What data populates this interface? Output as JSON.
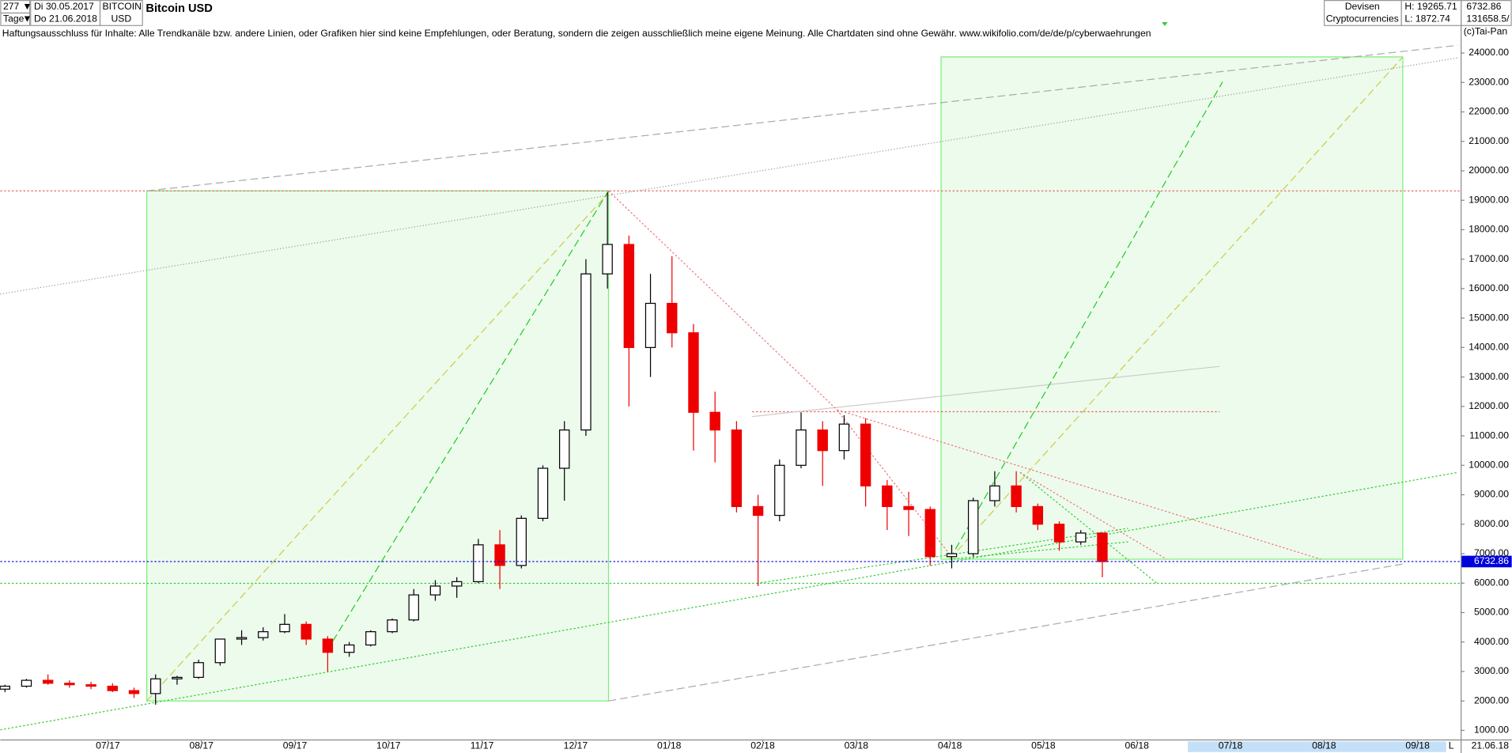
{
  "header": {
    "count": "277",
    "from_date": "Di 30.05.2017",
    "period": "Tage",
    "to_date": "Do 21.06.2018",
    "symbol": "BITCOIN",
    "currency": "USD",
    "group": "Devisen",
    "subgroup": "Cryptocurrencies",
    "high": "H: 19265.71",
    "low": "L: 1872.74",
    "last": "6732.86",
    "volume": "131658.5/"
  },
  "chart_data": {
    "type": "candlestick",
    "title": "Bitcoin USD",
    "subtitle": "Haftungsausschluss für Inhalte: Alle Trendkanäle bzw. andere Linien, oder Grafiken hier sind keine Empfehlungen, oder Beratung, sondern die zeigen ausschließlich meine eigene Meinung. Alle Chartdaten sind ohne Gewähr.  www.wikifolio.com/de/de/p/cyberwaehrungen",
    "copyright": "(c)Tai-Pan",
    "end_label": "21.06.18",
    "scale_label": "L",
    "up_color": "#000000",
    "down_color": "#ee0000",
    "last_price": 6732.86,
    "last_price_color": "#0000dd",
    "x": [
      5.9,
      6.13,
      6.36,
      6.59,
      6.82,
      7.05,
      7.28,
      7.51,
      7.74,
      7.97,
      8.2,
      8.43,
      8.66,
      8.89,
      9.12,
      9.35,
      9.58,
      9.81,
      10.04,
      10.27,
      10.5,
      10.73,
      10.96,
      11.19,
      11.42,
      11.65,
      11.88,
      12.11,
      12.34,
      12.57,
      12.8,
      13.03,
      13.26,
      13.49,
      13.72,
      13.95,
      14.18,
      14.41,
      14.64,
      14.87,
      15.1,
      15.33,
      15.56,
      15.79,
      16.02,
      16.25,
      16.48,
      16.71,
      16.94,
      17.17,
      17.4,
      17.63
    ],
    "open": [
      2400,
      2500,
      2700,
      2600,
      2550,
      2500,
      2350,
      2250,
      2750,
      2800,
      3300,
      4100,
      4150,
      4350,
      4600,
      4100,
      3650,
      3900,
      4350,
      4750,
      5600,
      5900,
      6050,
      7300,
      6600,
      8200,
      9900,
      11200,
      16500,
      17500,
      14000,
      15500,
      14500,
      11800,
      11200,
      8600,
      8300,
      10000,
      11200,
      10500,
      11400,
      9300,
      8600,
      8500,
      6900,
      7000,
      8800,
      9300,
      8600,
      8000,
      7400,
      7700
    ],
    "high": [
      2550,
      2750,
      2900,
      2700,
      2650,
      2600,
      2450,
      2900,
      2850,
      3400,
      4100,
      4400,
      4500,
      4950,
      4700,
      4200,
      4000,
      4400,
      4800,
      5800,
      6100,
      6200,
      7500,
      7800,
      8300,
      10000,
      11500,
      17000,
      19265.71,
      17800,
      16500,
      17100,
      14800,
      12500,
      11500,
      9000,
      10200,
      11800,
      11500,
      11700,
      11600,
      9500,
      9100,
      8600,
      7300,
      8900,
      9800,
      9800,
      8700,
      8100,
      7800,
      7700
    ],
    "low": [
      2300,
      2450,
      2550,
      2450,
      2400,
      2300,
      2100,
      1872.74,
      2550,
      2750,
      3200,
      3900,
      4050,
      4300,
      3900,
      3000,
      3500,
      3850,
      4300,
      4700,
      5400,
      5500,
      6000,
      5800,
      6500,
      8100,
      8800,
      11000,
      16000,
      12000,
      13000,
      14000,
      10500,
      10100,
      8400,
      5900,
      8100,
      9900,
      9300,
      10200,
      8600,
      7800,
      7600,
      6600,
      6500,
      6900,
      8600,
      8400,
      7800,
      7100,
      7300,
      6200
    ],
    "close": [
      2500,
      2700,
      2600,
      2550,
      2500,
      2350,
      2250,
      2750,
      2800,
      3300,
      4100,
      4150,
      4350,
      4600,
      4100,
      3650,
      3900,
      4350,
      4750,
      5600,
      5900,
      6050,
      7300,
      6600,
      8200,
      9900,
      11200,
      16500,
      17500,
      14000,
      15500,
      14500,
      11800,
      11200,
      8600,
      8300,
      10000,
      11200,
      10500,
      11400,
      9300,
      8600,
      8500,
      6900,
      7000,
      8800,
      9300,
      8600,
      8000,
      7400,
      7700,
      6732.86
    ],
    "xlim": [
      5.85,
      21.46
    ],
    "xticks": [
      {
        "value": 7,
        "label": "07/17"
      },
      {
        "value": 8,
        "label": "08/17"
      },
      {
        "value": 9,
        "label": "09/17"
      },
      {
        "value": 10,
        "label": "10/17"
      },
      {
        "value": 11,
        "label": "11/17"
      },
      {
        "value": 12,
        "label": "12/17"
      },
      {
        "value": 13,
        "label": "01/18"
      },
      {
        "value": 14,
        "label": "02/18"
      },
      {
        "value": 15,
        "label": "03/18"
      },
      {
        "value": 16,
        "label": "04/18"
      },
      {
        "value": 17,
        "label": "05/18"
      },
      {
        "value": 18,
        "label": "06/18"
      },
      {
        "value": 19,
        "label": "07/18"
      },
      {
        "value": 20,
        "label": "08/18"
      },
      {
        "value": 21,
        "label": "09/18"
      }
    ],
    "ylim": [
      690,
      24425
    ],
    "yticks": [
      {
        "value": 1000,
        "label": "1000.00"
      },
      {
        "value": 2000,
        "label": "2000.00"
      },
      {
        "value": 3000,
        "label": "3000.00"
      },
      {
        "value": 4000,
        "label": "4000.00"
      },
      {
        "value": 5000,
        "label": "5000.00"
      },
      {
        "value": 6000,
        "label": "6000.00"
      },
      {
        "value": 7000,
        "label": "7000.00"
      },
      {
        "value": 8000,
        "label": "8000.00"
      },
      {
        "value": 9000,
        "label": "9000.00"
      },
      {
        "value": 10000,
        "label": "10000.00"
      },
      {
        "value": 11000,
        "label": "11000.00"
      },
      {
        "value": 12000,
        "label": "12000.00"
      },
      {
        "value": 13000,
        "label": "13000.00"
      },
      {
        "value": 14000,
        "label": "14000.00"
      },
      {
        "value": 15000,
        "label": "15000.00"
      },
      {
        "value": 16000,
        "label": "16000.00"
      },
      {
        "value": 17000,
        "label": "17000.00"
      },
      {
        "value": 18000,
        "label": "18000.00"
      },
      {
        "value": 19000,
        "label": "19000.00"
      },
      {
        "value": 20000,
        "label": "20000.00"
      },
      {
        "value": 21000,
        "label": "21000.00"
      },
      {
        "value": 22000,
        "label": "22000.00"
      },
      {
        "value": 23000,
        "label": "23000.00"
      },
      {
        "value": 24000,
        "label": "24000.00"
      }
    ],
    "grid": false
  }
}
